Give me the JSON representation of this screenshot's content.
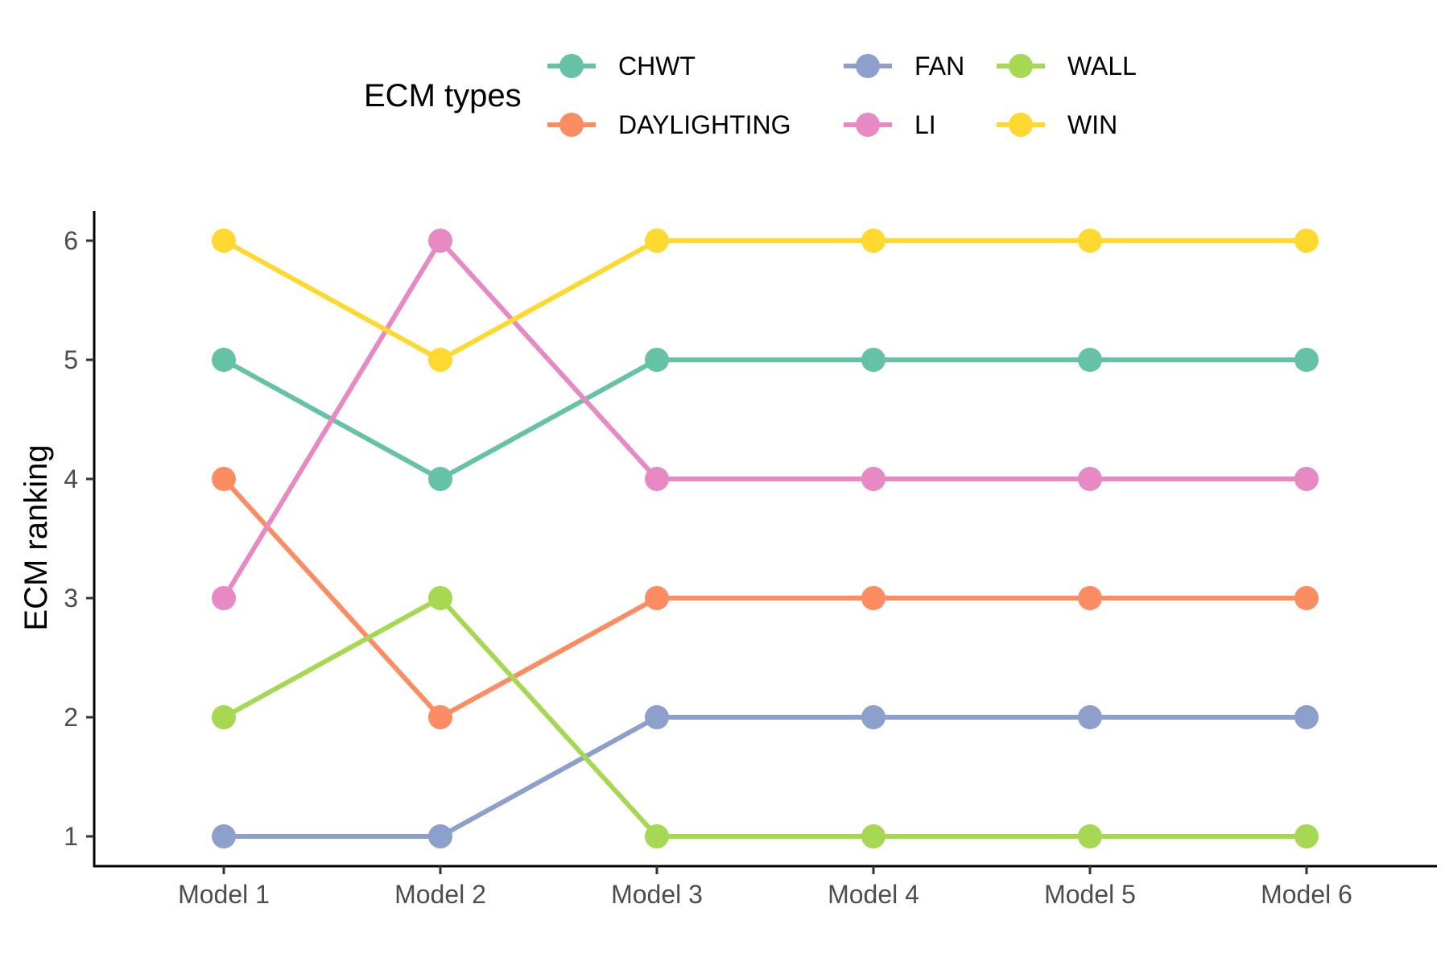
{
  "chart_data": {
    "type": "line",
    "title": "",
    "xlabel": "",
    "ylabel": "ECM ranking",
    "categories": [
      "Model 1",
      "Model 2",
      "Model 3",
      "Model 4",
      "Model 5",
      "Model 6"
    ],
    "ylim": [
      0.75,
      6.25
    ],
    "yticks": [
      "1",
      "2",
      "3",
      "4",
      "5",
      "6"
    ],
    "grid": false,
    "legend": {
      "title": "ECM types",
      "placement": "top"
    },
    "series": [
      {
        "name": "CHWT",
        "color": "#66C2A5",
        "values": [
          5,
          4,
          5,
          5,
          5,
          5
        ]
      },
      {
        "name": "DAYLIGHTING",
        "color": "#FC8D62",
        "values": [
          4,
          2,
          3,
          3,
          3,
          3
        ]
      },
      {
        "name": "FAN",
        "color": "#8DA0CB",
        "values": [
          1,
          1,
          2,
          2,
          2,
          2
        ]
      },
      {
        "name": "LI",
        "color": "#E78AC3",
        "values": [
          3,
          6,
          4,
          4,
          4,
          4
        ]
      },
      {
        "name": "WALL",
        "color": "#A6D854",
        "values": [
          2,
          3,
          1,
          1,
          1,
          1
        ]
      },
      {
        "name": "WIN",
        "color": "#FFD92F",
        "values": [
          6,
          5,
          6,
          6,
          6,
          6
        ]
      }
    ]
  }
}
